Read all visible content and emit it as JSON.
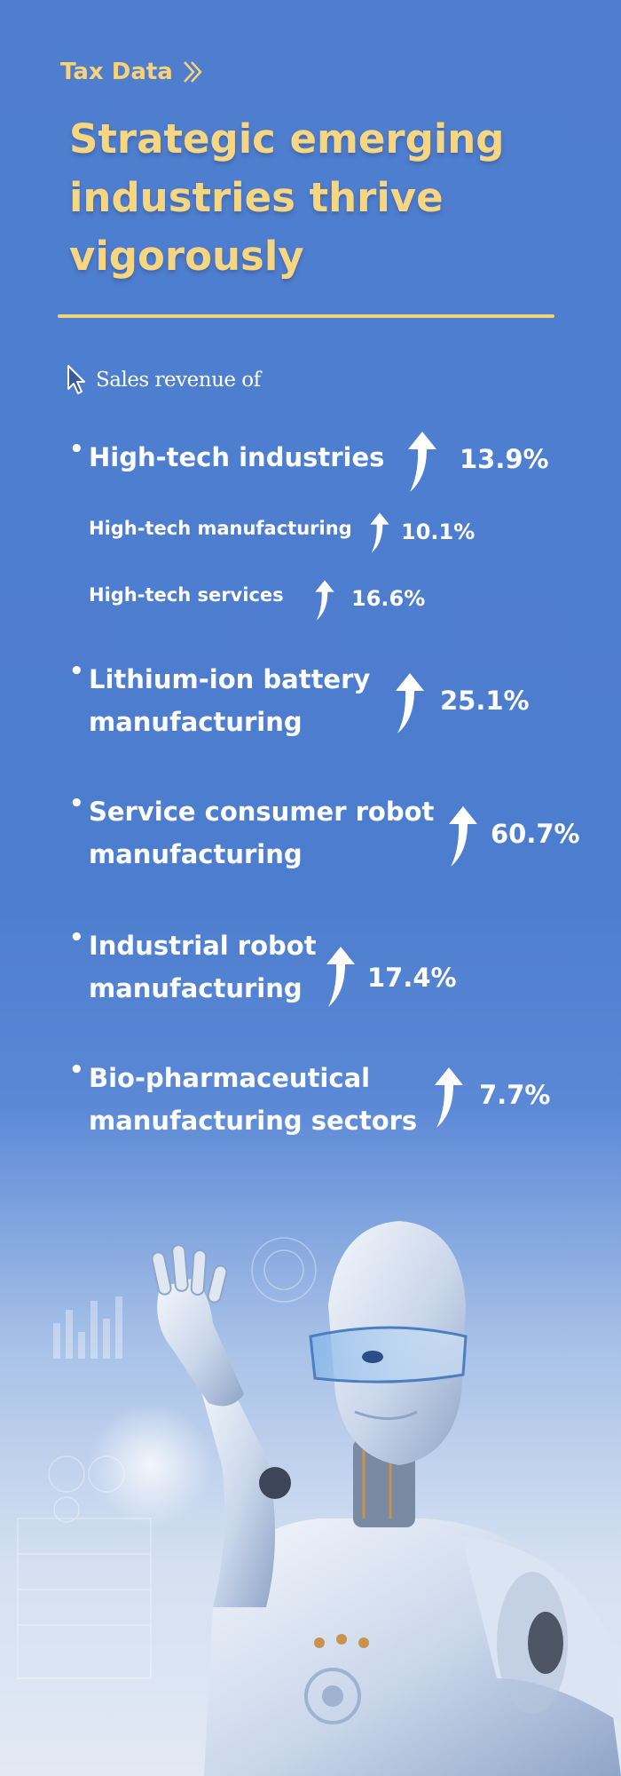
{
  "header": {
    "kicker": "Tax Data",
    "title": "Strategic emerging industries thrive vigorously"
  },
  "intro": "Sales revenue of",
  "items": [
    {
      "label": "High-tech industries",
      "value": "13.9%"
    },
    {
      "label": "High-tech manufacturing",
      "value": "10.1%"
    },
    {
      "label": "High-tech services",
      "value": "16.6%"
    },
    {
      "label_line1": "Lithium-ion battery",
      "label_line2": "manufacturing",
      "value": "25.1%"
    },
    {
      "label_line1": "Service consumer robot",
      "label_line2": "manufacturing",
      "value": "60.7%"
    },
    {
      "label_line1": "Industrial robot",
      "label_line2": "manufacturing",
      "value": "17.4%"
    },
    {
      "label_line1": "Bio-pharmaceutical",
      "label_line2": "manufacturing sectors",
      "value": "7.7%"
    }
  ],
  "icons": {
    "kicker": "double-chevron-right-icon",
    "intro": "cursor-pointer-icon",
    "growth": "up-arrow-icon"
  },
  "colors": {
    "background": "#4f7ecf",
    "accent": "#f6d37a",
    "text": "#ffffff"
  }
}
